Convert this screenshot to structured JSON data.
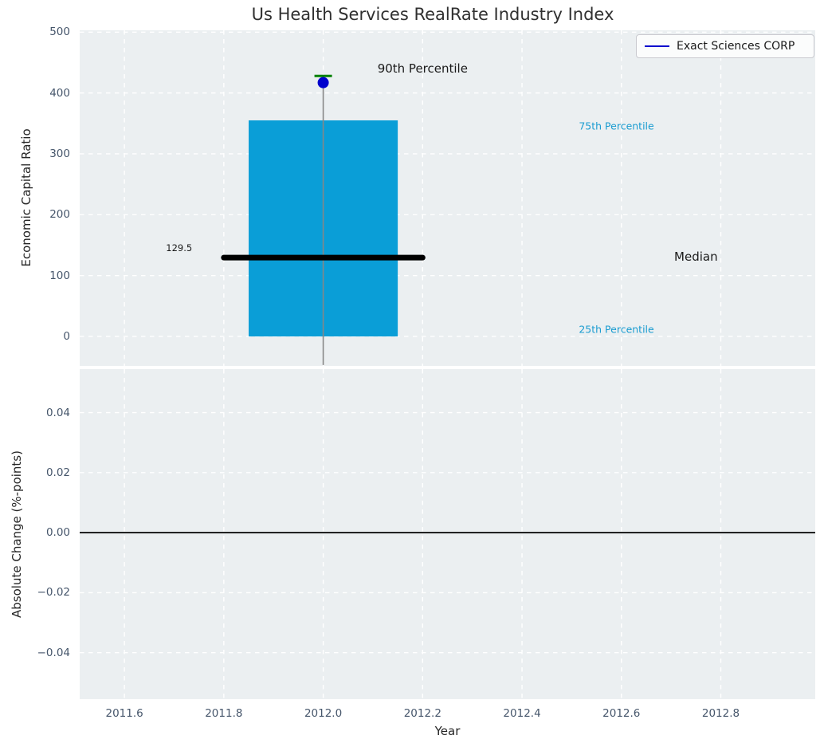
{
  "figure": {
    "title": "Us Health Services RealRate Industry Index",
    "xlabel": "Year"
  },
  "legend": {
    "label": "Exact Sciences CORP"
  },
  "colors": {
    "figure_bg": "#ffffff",
    "axes_bg": "#ebeff1",
    "grid": "#ffffff",
    "box_fill": "#0a9ed7",
    "median_line": "#000000",
    "whisker_line": "#878787",
    "whisker_cap": "#008000",
    "marker": "#0000cd",
    "legend_line": "#0000cd",
    "tick_label": "#46566b",
    "percentile_label": "#1a9cd1",
    "annotation_text": "#1a1a1a",
    "zero_line": "#000000"
  },
  "chart_data": [
    {
      "type": "boxplot",
      "title": "Us Health Services RealRate Industry Index",
      "ylabel": "Economic Capital Ratio",
      "ylim": [
        -48.5,
        503
      ],
      "xlim": [
        2011.51,
        2012.99
      ],
      "grid": true,
      "legend_position": "upper right",
      "yticks": [
        {
          "v": 0,
          "label": "0"
        },
        {
          "v": 100,
          "label": "100"
        },
        {
          "v": 200,
          "label": "200"
        },
        {
          "v": 300,
          "label": "300"
        },
        {
          "v": 400,
          "label": "400"
        },
        {
          "v": 500,
          "label": "500"
        }
      ],
      "xticks": [
        2011.6,
        2011.8,
        2012.0,
        2012.2,
        2012.4,
        2012.6,
        2012.8
      ],
      "box": {
        "x_center": 2012.0,
        "box_left": 2011.85,
        "box_right": 2012.15,
        "q1": 0,
        "q3": 355,
        "median": 129.5,
        "median_left": 2011.8,
        "median_right": 2012.2,
        "whisker_high": 428,
        "whisker_low": -47
      },
      "series": [
        {
          "name": "Exact Sciences CORP",
          "type": "scatter",
          "points": [
            {
              "x": 2012.0,
              "y": 417
            }
          ]
        }
      ],
      "annotations": [
        {
          "text": "90th Percentile",
          "x": 2012.2,
          "y": 440,
          "size": 15,
          "color": "#1a1a1a"
        },
        {
          "text": "75th Percentile",
          "x": 2012.59,
          "y": 346,
          "size": 12.5,
          "color": "#1a9cd1"
        },
        {
          "text": "Median",
          "x": 2012.75,
          "y": 131,
          "size": 15,
          "color": "#1a1a1a"
        },
        {
          "text": "25th Percentile",
          "x": 2012.59,
          "y": 12,
          "size": 12.5,
          "color": "#1a9cd1"
        },
        {
          "text": "129.5",
          "x": 2011.71,
          "y": 145,
          "size": 11.5,
          "color": "#1a1a1a"
        }
      ]
    },
    {
      "type": "line",
      "ylabel": "Absolute Change (%-points)",
      "xlabel": "Year",
      "ylim": [
        -0.0555,
        0.0545
      ],
      "xlim": [
        2011.51,
        2012.99
      ],
      "grid": true,
      "yticks": [
        {
          "v": 0.04,
          "label": "0.04"
        },
        {
          "v": 0.02,
          "label": "0.02"
        },
        {
          "v": 0.0,
          "label": "0.00"
        },
        {
          "v": -0.02,
          "label": "−0.02"
        },
        {
          "v": -0.04,
          "label": "−0.04"
        }
      ],
      "xticks": [
        {
          "v": 2011.6,
          "label": "2011.6"
        },
        {
          "v": 2011.8,
          "label": "2011.8"
        },
        {
          "v": 2012.0,
          "label": "2012.0"
        },
        {
          "v": 2012.2,
          "label": "2012.2"
        },
        {
          "v": 2012.4,
          "label": "2012.4"
        },
        {
          "v": 2012.6,
          "label": "2012.6"
        },
        {
          "v": 2012.8,
          "label": "2012.8"
        }
      ],
      "zero_line": 0.0,
      "series": []
    }
  ]
}
